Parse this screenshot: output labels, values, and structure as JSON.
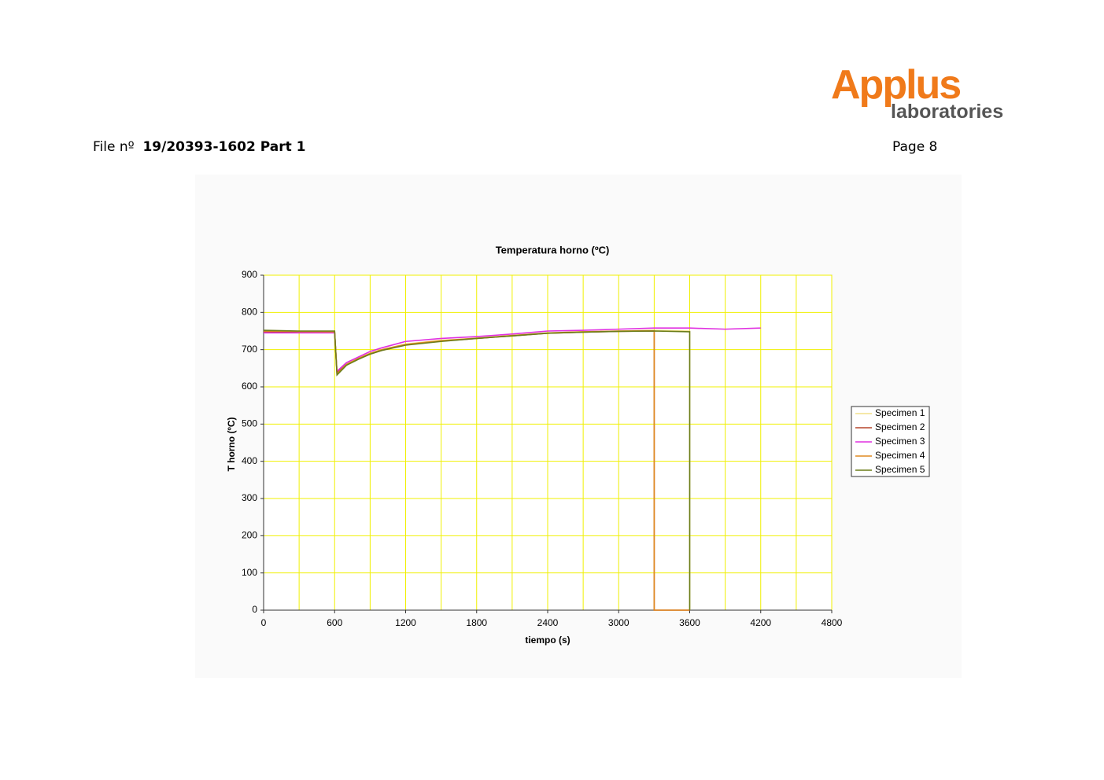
{
  "header": {
    "logo_main": "Applus",
    "logo_sub": "laboratories",
    "file_label": "File nº",
    "file_number": "19/20393-1602 Part 1",
    "page": "Page 8"
  },
  "chart_data": {
    "type": "line",
    "title": "Temperatura horno  (ºC)",
    "xlabel": "tiempo (s)",
    "ylabel": "T horno (ºC)",
    "x": [
      0,
      300,
      600,
      620,
      700,
      800,
      900,
      1000,
      1200,
      1500,
      1800,
      2100,
      2400,
      2700,
      3000,
      3300,
      3300,
      3600,
      3600,
      3900,
      4200
    ],
    "series": [
      {
        "name": "Specimen 1",
        "color": "#f2e08a",
        "values": [
          750,
          748,
          748,
          640,
          662,
          677,
          690,
          700,
          715,
          725,
          730,
          738,
          745,
          748,
          750,
          752,
          752,
          750,
          0,
          null,
          null
        ]
      },
      {
        "name": "Specimen 2",
        "color": "#b5452a",
        "values": [
          748,
          746,
          746,
          638,
          660,
          675,
          688,
          698,
          713,
          723,
          730,
          737,
          744,
          747,
          749,
          750,
          0,
          0,
          null,
          null,
          null
        ]
      },
      {
        "name": "Specimen 3",
        "color": "#e030e0",
        "values": [
          745,
          745,
          745,
          642,
          665,
          680,
          695,
          705,
          722,
          730,
          735,
          742,
          750,
          752,
          755,
          758,
          758,
          758,
          758,
          755,
          758
        ]
      },
      {
        "name": "Specimen 4",
        "color": "#e08a20",
        "values": [
          750,
          749,
          748,
          635,
          660,
          676,
          690,
          700,
          714,
          724,
          731,
          738,
          745,
          748,
          750,
          751,
          0,
          0,
          null,
          null,
          null
        ]
      },
      {
        "name": "Specimen 5",
        "color": "#6b7d18",
        "values": [
          752,
          750,
          750,
          632,
          658,
          674,
          688,
          698,
          712,
          722,
          730,
          737,
          744,
          747,
          749,
          750,
          750,
          748,
          0,
          null,
          null
        ]
      }
    ],
    "xlim": [
      0,
      4800
    ],
    "ylim": [
      0,
      900
    ],
    "xticks": [
      0,
      600,
      1200,
      1800,
      2400,
      3000,
      3600,
      4200,
      4800
    ],
    "xgrid_minor": [
      300,
      900,
      1500,
      2100,
      2700,
      3300,
      3900,
      4500
    ],
    "yticks": [
      0,
      100,
      200,
      300,
      400,
      500,
      600,
      700,
      800,
      900
    ],
    "grid": true,
    "grid_color": "#f0f000",
    "legend": "right"
  }
}
